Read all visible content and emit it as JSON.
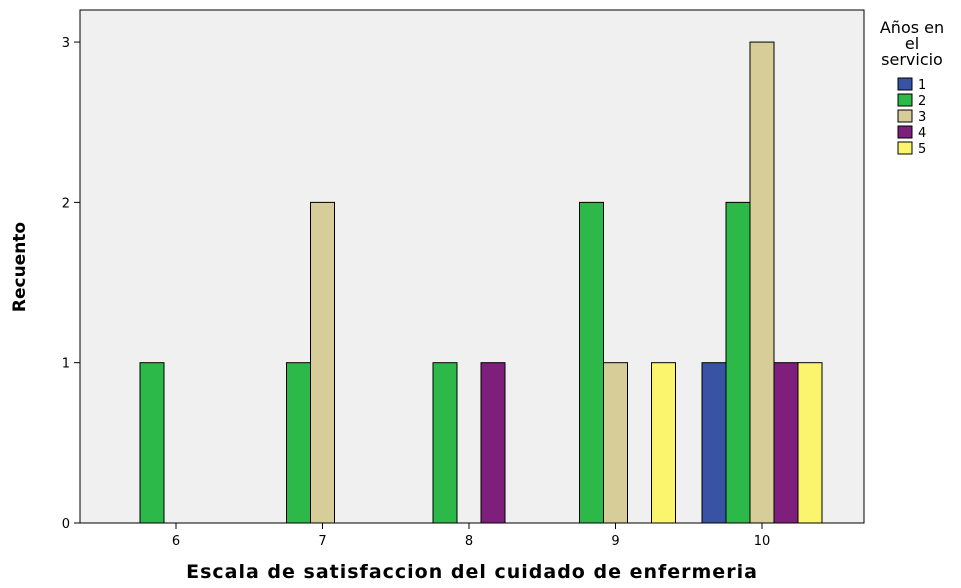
{
  "chart_data": {
    "type": "bar",
    "xlabel": "Escala de satisfaccion del cuidado de enfermeria",
    "ylabel": "Recuento",
    "categories": [
      "6",
      "7",
      "8",
      "9",
      "10"
    ],
    "ylim": [
      0,
      3.2
    ],
    "yticks": [
      0,
      1,
      2,
      3
    ],
    "grid": false,
    "legend_position": "right",
    "legend_title_lines": [
      "Años en",
      "el",
      "servicio"
    ],
    "plot_background": "#f0f0f0",
    "series": [
      {
        "name": "1",
        "color": "#3953a4",
        "values": [
          0,
          0,
          0,
          0,
          1
        ]
      },
      {
        "name": "2",
        "color": "#2db84a",
        "values": [
          1,
          1,
          1,
          2,
          2
        ]
      },
      {
        "name": "3",
        "color": "#d6cd99",
        "values": [
          0,
          2,
          0,
          1,
          3
        ]
      },
      {
        "name": "4",
        "color": "#7f1f7c",
        "values": [
          0,
          0,
          1,
          0,
          1
        ]
      },
      {
        "name": "5",
        "color": "#fbf56e",
        "values": [
          0,
          0,
          0,
          1,
          1
        ]
      }
    ]
  }
}
